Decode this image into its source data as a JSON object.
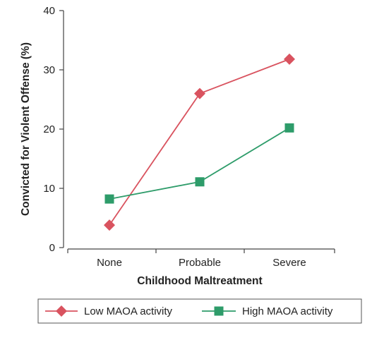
{
  "chart_data": {
    "type": "line",
    "title": "",
    "xlabel": "Childhood Maltreatment",
    "ylabel": "Convicted for Violent Offense (%)",
    "categories": [
      "None",
      "Probable",
      "Severe"
    ],
    "ylim": [
      0,
      40
    ],
    "yticks": [
      0,
      10,
      20,
      30,
      40
    ],
    "grid": false,
    "legend_position": "bottom",
    "series": [
      {
        "name": "Low MAOA activity",
        "values": [
          3.8,
          26,
          31.8
        ],
        "color": "#d9535f",
        "marker": "diamond"
      },
      {
        "name": "High MAOA activity",
        "values": [
          8.2,
          11.1,
          20.2
        ],
        "color": "#2e9c6a",
        "marker": "square"
      }
    ]
  }
}
